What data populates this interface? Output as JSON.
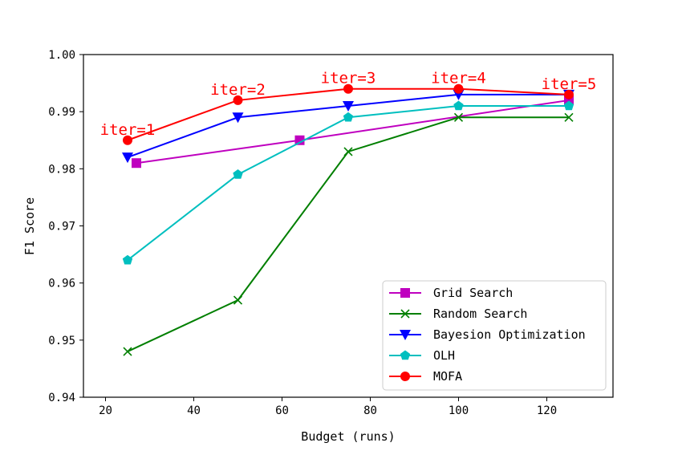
{
  "chart_data": {
    "type": "line",
    "title": "",
    "xlabel": "Budget (runs)",
    "ylabel": "F1 Score",
    "xlim": [
      15,
      135
    ],
    "ylim": [
      0.94,
      1.0
    ],
    "xticks": [
      20,
      40,
      60,
      80,
      100,
      120
    ],
    "xtick_labels": [
      "20",
      "40",
      "60",
      "80",
      "100",
      "120"
    ],
    "yticks": [
      0.94,
      0.95,
      0.96,
      0.97,
      0.98,
      0.99,
      1.0
    ],
    "ytick_labels": [
      "0.94",
      "0.95",
      "0.96",
      "0.97",
      "0.98",
      "0.99",
      "1.00"
    ],
    "grid": false,
    "legend_position": "lower-right",
    "series": [
      {
        "name": "Grid Search",
        "color": "#bf00bf",
        "marker": "square",
        "x": [
          27,
          64,
          125
        ],
        "y": [
          0.981,
          0.985,
          0.992
        ]
      },
      {
        "name": "Random Search",
        "color": "#007f00",
        "marker": "x",
        "x": [
          25,
          50,
          75,
          100,
          125
        ],
        "y": [
          0.948,
          0.957,
          0.983,
          0.989,
          0.989
        ]
      },
      {
        "name": "Bayesion Optimization",
        "color": "#0000ff",
        "marker": "triangle-down",
        "x": [
          25,
          50,
          75,
          100,
          125
        ],
        "y": [
          0.982,
          0.989,
          0.991,
          0.993,
          0.993
        ]
      },
      {
        "name": "OLH",
        "color": "#00bfbf",
        "marker": "pentagon",
        "x": [
          25,
          50,
          75,
          100,
          125
        ],
        "y": [
          0.964,
          0.979,
          0.989,
          0.991,
          0.991
        ]
      },
      {
        "name": "MOFA",
        "color": "#ff0000",
        "marker": "circle",
        "x": [
          25,
          50,
          75,
          100,
          125
        ],
        "y": [
          0.985,
          0.992,
          0.994,
          0.994,
          0.993
        ]
      }
    ],
    "annotations": [
      {
        "text": "iter=1",
        "x": 25,
        "y": 0.985,
        "color": "#ff0000"
      },
      {
        "text": "iter=2",
        "x": 50,
        "y": 0.992,
        "color": "#ff0000"
      },
      {
        "text": "iter=3",
        "x": 75,
        "y": 0.994,
        "color": "#ff0000"
      },
      {
        "text": "iter=4",
        "x": 100,
        "y": 0.994,
        "color": "#ff0000"
      },
      {
        "text": "iter=5",
        "x": 125,
        "y": 0.993,
        "color": "#ff0000"
      }
    ]
  }
}
